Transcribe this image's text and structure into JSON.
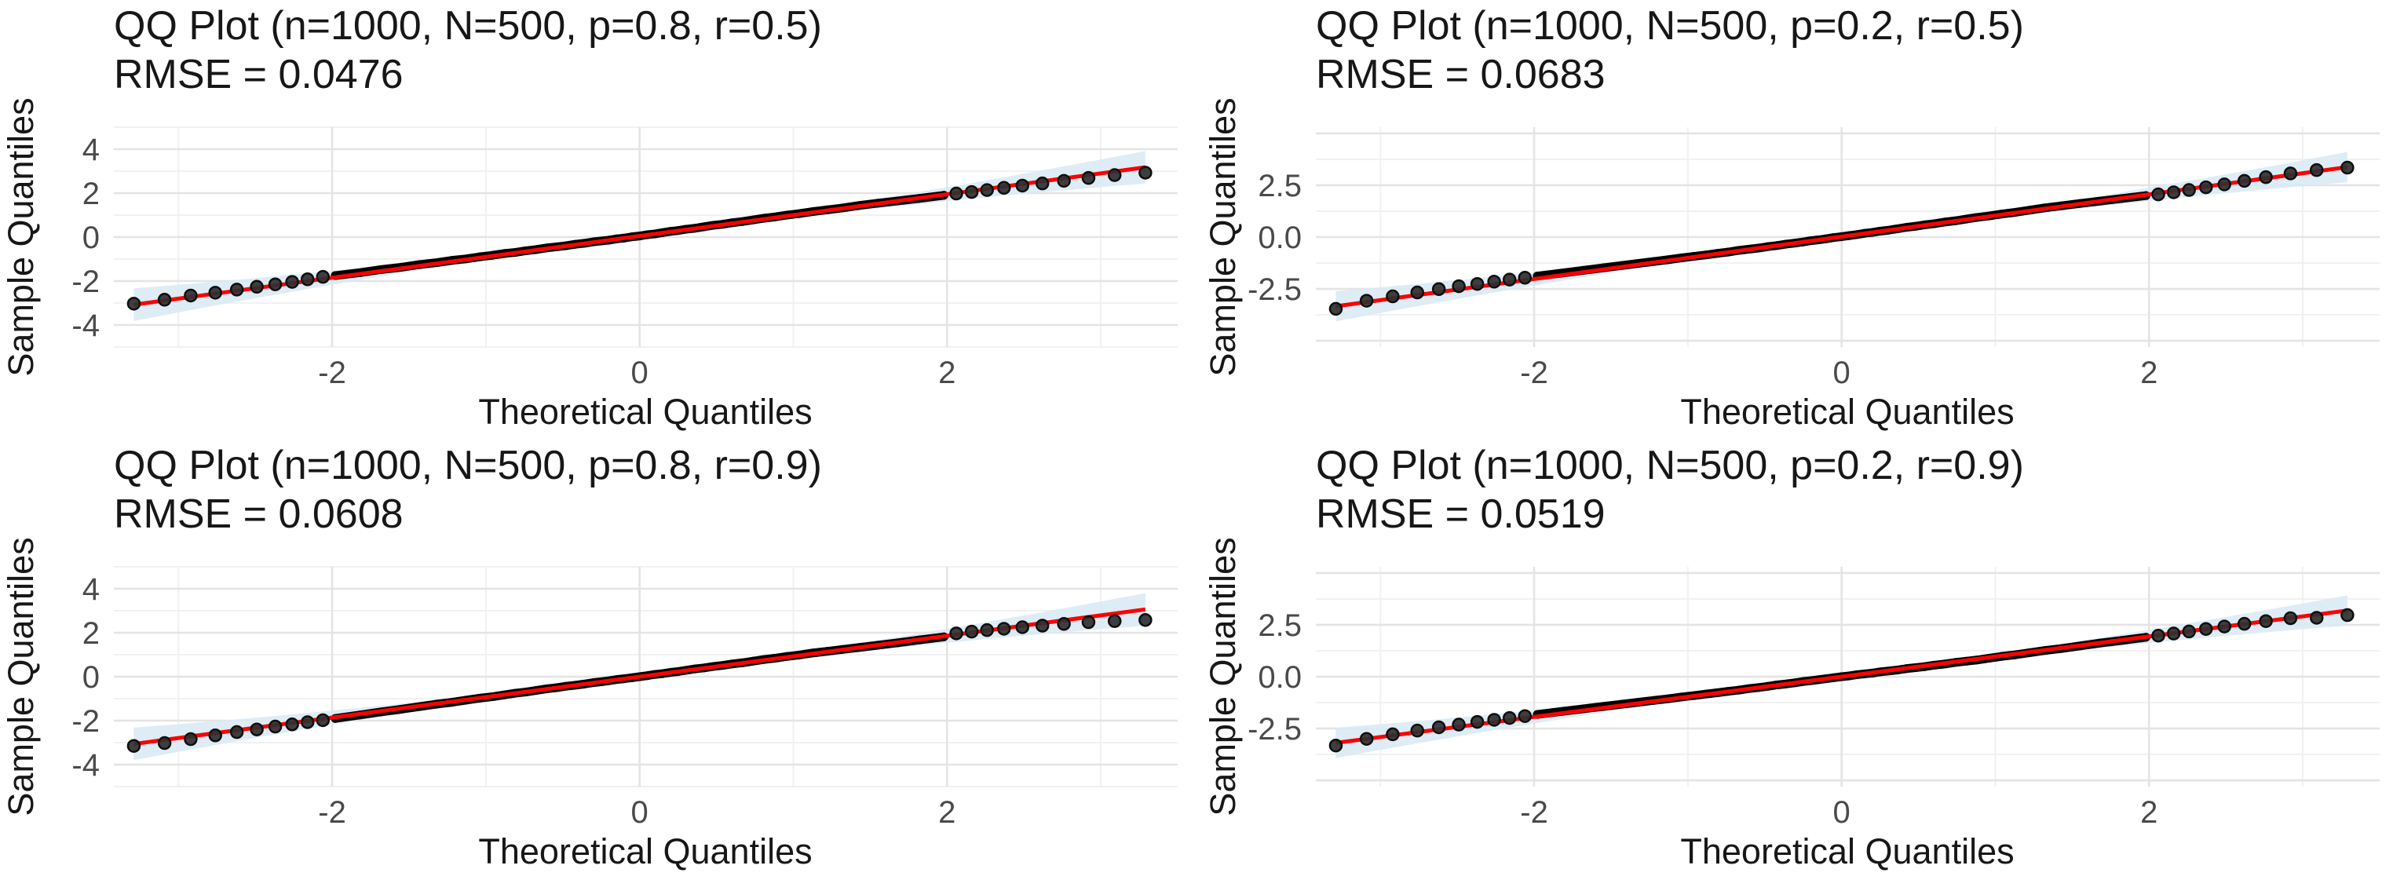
{
  "page": {
    "background": "#ffffff",
    "description": "2x2 grid of QQ plots with RMSE annotations"
  },
  "chart_data": {
    "type": "scatter",
    "variant": "qq-plot-grid",
    "xlabel": "Theoretical Quantiles",
    "ylabel": "Sample Quantiles",
    "grid": "on",
    "legend": "none",
    "colors": {
      "line": "#FF0000",
      "band": "#D9E9F5",
      "point": "#000000",
      "tail_fill": "#2F2F2F",
      "tail_stroke": "#0E0E0E",
      "grid_major": "#E4E4E4",
      "grid_minor": "#F1F1F1",
      "title_text": "#171717",
      "tick_text": "#4A4A4A"
    },
    "dense_x": [
      -1.98,
      -1.82,
      -1.68,
      -1.55,
      -1.43,
      -1.32,
      -1.22,
      -1.13,
      -1.04,
      -0.96,
      -0.88,
      -0.81,
      -0.74,
      -0.67,
      -0.6,
      -0.54,
      -0.48,
      -0.42,
      -0.36,
      -0.3,
      -0.25,
      -0.2,
      -0.15,
      -0.1,
      -0.05,
      0.0,
      0.05,
      0.1,
      0.15,
      0.2,
      0.25,
      0.3,
      0.36,
      0.42,
      0.48,
      0.54,
      0.6,
      0.67,
      0.74,
      0.81,
      0.88,
      0.96,
      1.04,
      1.13,
      1.22,
      1.32,
      1.43,
      1.55,
      1.68,
      1.82,
      1.98
    ],
    "panels": [
      {
        "title": "QQ Plot (n=1000, N=500, p=0.8, r=0.5)",
        "rmse_label": "RMSE = 0.0476",
        "params": {
          "n": 1000,
          "N": 500,
          "p": 0.8,
          "r": 0.5
        },
        "rmse": 0.0476,
        "xlim": [
          -3.42,
          3.5
        ],
        "ylim": [
          -5.0,
          5.0
        ],
        "x_axis": {
          "ticks": [
            {
              "v": -2,
              "label": "-2"
            },
            {
              "v": 0,
              "label": "0"
            },
            {
              "v": 2,
              "label": "2"
            }
          ],
          "major": [
            -2,
            0,
            2
          ],
          "minor": [
            -3,
            -1,
            1,
            3
          ]
        },
        "y_axis": {
          "ticks": [
            {
              "v": 4,
              "label": "4"
            },
            {
              "v": 2,
              "label": "2"
            },
            {
              "v": 0,
              "label": "0"
            },
            {
              "v": -2,
              "label": "-2"
            },
            {
              "v": -4,
              "label": "-4"
            }
          ],
          "major": [
            -4,
            -2,
            0,
            2,
            4
          ],
          "minor": [
            -5,
            -3,
            -1,
            1,
            3,
            5
          ]
        },
        "line": {
          "slope": 0.95,
          "intercept": 0.05,
          "x1": -3.29,
          "x2": 3.29
        },
        "band": {
          "h0": 0.07,
          "k": 0.062
        },
        "dense_dev": [
          0.08,
          0.06,
          0.07,
          0.05,
          0.06,
          0.04,
          0.05,
          0.03,
          0.04,
          0.03,
          0.04,
          0.02,
          0.03,
          0.02,
          0.03,
          0.02,
          0.01,
          0.02,
          0.01,
          0.02,
          0.01,
          0.0,
          0.01,
          0.0,
          0.01,
          0.0,
          0.01,
          0.0,
          0.01,
          0.02,
          0.01,
          0.02,
          0.01,
          0.02,
          0.03,
          0.02,
          0.03,
          0.02,
          0.03,
          0.04,
          0.03,
          0.04,
          0.03,
          0.04,
          0.03,
          0.02,
          0.03,
          0.02,
          0.0,
          -0.02,
          -0.03
        ],
        "tail_low": [
          [
            -3.29,
            -3.03
          ],
          [
            -3.09,
            -2.85
          ],
          [
            -2.92,
            -2.66
          ],
          [
            -2.76,
            -2.53
          ],
          [
            -2.62,
            -2.39
          ],
          [
            -2.49,
            -2.26
          ],
          [
            -2.37,
            -2.15
          ],
          [
            -2.26,
            -2.04
          ],
          [
            -2.16,
            -1.92
          ],
          [
            -2.06,
            -1.81
          ]
        ],
        "tail_high": [
          [
            2.06,
            1.98
          ],
          [
            2.16,
            2.05
          ],
          [
            2.26,
            2.14
          ],
          [
            2.37,
            2.24
          ],
          [
            2.49,
            2.34
          ],
          [
            2.62,
            2.44
          ],
          [
            2.76,
            2.56
          ],
          [
            2.92,
            2.69
          ],
          [
            3.09,
            2.82
          ],
          [
            3.29,
            2.93
          ]
        ]
      },
      {
        "title": "QQ Plot (n=1000, N=500, p=0.2, r=0.5)",
        "rmse_label": "RMSE = 0.0683",
        "params": {
          "n": 1000,
          "N": 500,
          "p": 0.2,
          "r": 0.5
        },
        "rmse": 0.0683,
        "xlim": [
          -3.42,
          3.5
        ],
        "ylim": [
          -5.3,
          5.3
        ],
        "x_axis": {
          "ticks": [
            {
              "v": -2,
              "label": "-2"
            },
            {
              "v": 0,
              "label": "0"
            },
            {
              "v": 2,
              "label": "2"
            }
          ],
          "major": [
            -2,
            0,
            2
          ],
          "minor": [
            -3,
            -1,
            1,
            3
          ]
        },
        "y_axis": {
          "ticks": [
            {
              "v": 2.5,
              "label": "2.5"
            },
            {
              "v": 0,
              "label": "0.0"
            },
            {
              "v": -2.5,
              "label": "-2.5"
            }
          ],
          "major": [
            -5,
            -2.5,
            0,
            2.5,
            5
          ],
          "minor": [
            -3.75,
            -1.25,
            1.25,
            3.75
          ]
        },
        "line": {
          "slope": 1.02,
          "intercept": 0.02,
          "x1": -3.29,
          "x2": 3.29
        },
        "band": {
          "h0": 0.08,
          "k": 0.06
        },
        "dense_dev": [
          0.12,
          0.1,
          0.09,
          0.08,
          0.07,
          0.06,
          0.05,
          0.04,
          0.04,
          0.03,
          0.02,
          0.02,
          0.01,
          0.02,
          0.01,
          0.0,
          0.01,
          0.0,
          0.01,
          0.0,
          0.0,
          0.01,
          0.0,
          0.0,
          0.01,
          0.0,
          0.0,
          0.0,
          0.01,
          0.0,
          0.01,
          0.0,
          0.01,
          0.02,
          0.01,
          0.02,
          0.01,
          0.02,
          0.01,
          0.02,
          0.03,
          0.02,
          0.03,
          0.02,
          0.03,
          0.04,
          0.03,
          0.02,
          0.0,
          -0.02,
          -0.04
        ],
        "tail_low": [
          [
            -3.29,
            -3.46
          ],
          [
            -3.09,
            -3.07
          ],
          [
            -2.92,
            -2.86
          ],
          [
            -2.76,
            -2.67
          ],
          [
            -2.62,
            -2.51
          ],
          [
            -2.49,
            -2.37
          ],
          [
            -2.37,
            -2.26
          ],
          [
            -2.26,
            -2.15
          ],
          [
            -2.16,
            -2.05
          ],
          [
            -2.06,
            -1.96
          ]
        ],
        "tail_high": [
          [
            2.06,
            2.06
          ],
          [
            2.16,
            2.16
          ],
          [
            2.26,
            2.27
          ],
          [
            2.37,
            2.4
          ],
          [
            2.49,
            2.54
          ],
          [
            2.62,
            2.71
          ],
          [
            2.76,
            2.89
          ],
          [
            2.92,
            3.07
          ],
          [
            3.09,
            3.23
          ],
          [
            3.29,
            3.35
          ]
        ]
      },
      {
        "title": "QQ Plot (n=1000, N=500, p=0.8, r=0.9)",
        "rmse_label": "RMSE = 0.0608",
        "params": {
          "n": 1000,
          "N": 500,
          "p": 0.8,
          "r": 0.9
        },
        "rmse": 0.0608,
        "xlim": [
          -3.42,
          3.5
        ],
        "ylim": [
          -5.0,
          5.0
        ],
        "x_axis": {
          "ticks": [
            {
              "v": -2,
              "label": "-2"
            },
            {
              "v": 0,
              "label": "0"
            },
            {
              "v": 2,
              "label": "2"
            }
          ],
          "major": [
            -2,
            0,
            2
          ],
          "minor": [
            -3,
            -1,
            1,
            3
          ]
        },
        "y_axis": {
          "ticks": [
            {
              "v": 4,
              "label": "4"
            },
            {
              "v": 2,
              "label": "2"
            },
            {
              "v": 0,
              "label": "0"
            },
            {
              "v": -2,
              "label": "-2"
            },
            {
              "v": -4,
              "label": "-4"
            }
          ],
          "major": [
            -4,
            -2,
            0,
            2,
            4
          ],
          "minor": [
            -5,
            -3,
            -1,
            1,
            3,
            5
          ]
        },
        "line": {
          "slope": 0.93,
          "intercept": 0.0,
          "x1": -3.29,
          "x2": 3.29
        },
        "band": {
          "h0": 0.07,
          "k": 0.062
        },
        "dense_dev": [
          -0.06,
          -0.05,
          -0.04,
          -0.04,
          -0.03,
          -0.02,
          -0.03,
          -0.02,
          -0.01,
          -0.02,
          -0.01,
          0.0,
          -0.01,
          0.0,
          0.01,
          0.0,
          0.01,
          0.0,
          0.0,
          0.01,
          0.0,
          0.0,
          0.01,
          0.0,
          0.0,
          0.0,
          0.0,
          0.01,
          0.0,
          0.01,
          0.0,
          0.01,
          0.02,
          0.01,
          0.02,
          0.01,
          0.02,
          0.01,
          0.02,
          0.03,
          0.02,
          0.03,
          0.02,
          0.03,
          0.02,
          0.01,
          0.0,
          -0.01,
          -0.02,
          -0.02,
          -0.03
        ],
        "tail_low": [
          [
            -3.29,
            -3.15
          ],
          [
            -3.09,
            -3.02
          ],
          [
            -2.92,
            -2.84
          ],
          [
            -2.76,
            -2.67
          ],
          [
            -2.62,
            -2.52
          ],
          [
            -2.49,
            -2.4
          ],
          [
            -2.37,
            -2.27
          ],
          [
            -2.26,
            -2.17
          ],
          [
            -2.16,
            -2.07
          ],
          [
            -2.06,
            -1.98
          ]
        ],
        "tail_high": [
          [
            2.06,
            1.97
          ],
          [
            2.16,
            2.05
          ],
          [
            2.26,
            2.12
          ],
          [
            2.37,
            2.18
          ],
          [
            2.49,
            2.25
          ],
          [
            2.62,
            2.32
          ],
          [
            2.76,
            2.4
          ],
          [
            2.92,
            2.48
          ],
          [
            3.09,
            2.53
          ],
          [
            3.29,
            2.58
          ]
        ]
      },
      {
        "title": "QQ Plot (n=1000, N=500, p=0.2, r=0.9)",
        "rmse_label": "RMSE = 0.0519",
        "params": {
          "n": 1000,
          "N": 500,
          "p": 0.2,
          "r": 0.9
        },
        "rmse": 0.0519,
        "xlim": [
          -3.42,
          3.5
        ],
        "ylim": [
          -5.3,
          5.3
        ],
        "x_axis": {
          "ticks": [
            {
              "v": -2,
              "label": "-2"
            },
            {
              "v": 0,
              "label": "0"
            },
            {
              "v": 2,
              "label": "2"
            }
          ],
          "major": [
            -2,
            0,
            2
          ],
          "minor": [
            -3,
            -1,
            1,
            3
          ]
        },
        "y_axis": {
          "ticks": [
            {
              "v": 2.5,
              "label": "2.5"
            },
            {
              "v": 0,
              "label": "0.0"
            },
            {
              "v": -2.5,
              "label": "-2.5"
            }
          ],
          "major": [
            -5,
            -2.5,
            0,
            2.5,
            5
          ],
          "minor": [
            -3.75,
            -1.25,
            1.25,
            3.75
          ]
        },
        "line": {
          "slope": 0.97,
          "intercept": 0.0,
          "x1": -3.29,
          "x2": 3.29
        },
        "band": {
          "h0": 0.08,
          "k": 0.06
        },
        "dense_dev": [
          0.1,
          0.09,
          0.08,
          0.07,
          0.06,
          0.05,
          0.04,
          0.03,
          0.03,
          0.02,
          0.02,
          0.01,
          0.01,
          0.0,
          0.01,
          0.0,
          0.0,
          0.01,
          0.0,
          0.0,
          0.01,
          0.0,
          0.0,
          0.0,
          0.0,
          0.0,
          -0.01,
          0.0,
          -0.01,
          -0.02,
          -0.01,
          -0.02,
          -0.03,
          -0.02,
          -0.03,
          -0.04,
          -0.03,
          -0.04,
          -0.03,
          -0.04,
          -0.05,
          -0.04,
          -0.03,
          -0.04,
          -0.03,
          -0.02,
          -0.03,
          -0.02,
          -0.01,
          -0.02,
          -0.02
        ],
        "tail_low": [
          [
            -3.29,
            -3.32
          ],
          [
            -3.09,
            -3.0
          ],
          [
            -2.92,
            -2.78
          ],
          [
            -2.76,
            -2.6
          ],
          [
            -2.62,
            -2.44
          ],
          [
            -2.49,
            -2.31
          ],
          [
            -2.37,
            -2.18
          ],
          [
            -2.26,
            -2.08
          ],
          [
            -2.16,
            -1.99
          ],
          [
            -2.06,
            -1.9
          ]
        ],
        "tail_high": [
          [
            2.06,
            1.98
          ],
          [
            2.16,
            2.08
          ],
          [
            2.26,
            2.18
          ],
          [
            2.37,
            2.3
          ],
          [
            2.49,
            2.42
          ],
          [
            2.62,
            2.55
          ],
          [
            2.76,
            2.68
          ],
          [
            2.92,
            2.82
          ],
          [
            3.09,
            2.84
          ],
          [
            3.29,
            2.97
          ]
        ]
      }
    ]
  }
}
